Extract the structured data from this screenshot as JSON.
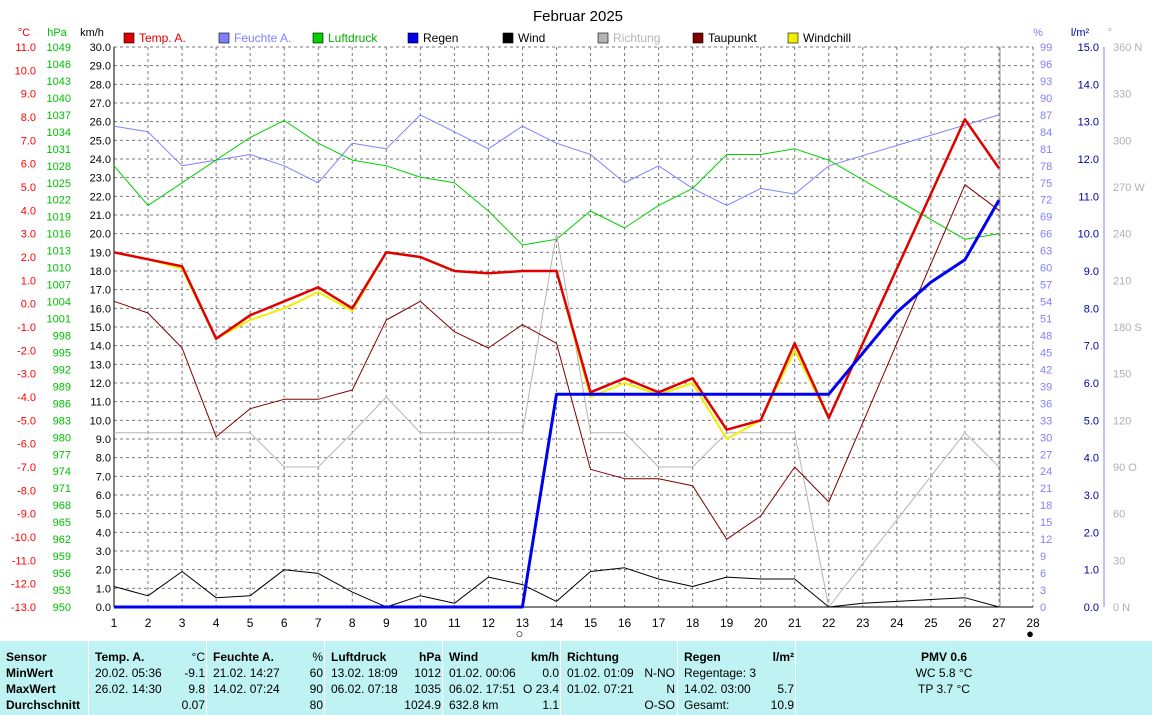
{
  "chart_data": {
    "type": "line",
    "title": "Februar 2025",
    "x": [
      1,
      2,
      3,
      4,
      5,
      6,
      7,
      8,
      9,
      10,
      11,
      12,
      13,
      14,
      15,
      16,
      17,
      18,
      19,
      20,
      21,
      22,
      23,
      24,
      25,
      26,
      27,
      28
    ],
    "xlim": [
      1,
      28
    ],
    "axes": {
      "temp": {
        "unit": "°C",
        "min": -13.0,
        "max": 11.0,
        "step": 1.0,
        "color": "#ff0000"
      },
      "pressure": {
        "unit": "hPa",
        "min": 950,
        "max": 1049,
        "step": 3,
        "color": "#00c000"
      },
      "wind": {
        "unit": "km/h",
        "min": 0.0,
        "max": 30.0,
        "step": 1.0,
        "color": "#000000"
      },
      "humidity": {
        "unit": "%",
        "min": 0,
        "max": 99,
        "step": 3,
        "color": "#8080ff"
      },
      "rain": {
        "unit": "l/m²",
        "min": 0.0,
        "max": 15.0,
        "step": 1.0,
        "color": "#0000ff"
      },
      "direction": {
        "unit": "°",
        "min": 0,
        "max": 360,
        "step": 30,
        "color": "#b0b0b0",
        "tick_labels": [
          "0 N",
          "30",
          "60",
          "90 O",
          "120",
          "150",
          "180 S",
          "210",
          "240",
          "270 W",
          "300",
          "330",
          "360 N"
        ]
      }
    },
    "series": [
      {
        "name": "Temp. A.",
        "axis": "temp",
        "color": "#e00000",
        "width": 2.5,
        "x": [
          1,
          2,
          3,
          4,
          5,
          6,
          7,
          8,
          9,
          10,
          11,
          12,
          13,
          14,
          15,
          16,
          17,
          18,
          19,
          20,
          21,
          22,
          26,
          27
        ],
        "values": [
          2.2,
          1.9,
          1.6,
          -1.5,
          -0.5,
          0.1,
          0.7,
          -0.2,
          2.2,
          2.0,
          1.4,
          1.3,
          1.4,
          1.4,
          -3.8,
          -3.2,
          -3.8,
          -3.2,
          -5.4,
          -5.0,
          -1.7,
          -4.9,
          7.9,
          5.8
        ]
      },
      {
        "name": "Feuchte A.",
        "axis": "humidity",
        "color": "#8080ff",
        "width": 1,
        "x": [
          1,
          2,
          3,
          4,
          5,
          6,
          7,
          8,
          9,
          10,
          11,
          12,
          13,
          14,
          15,
          16,
          17,
          18,
          19,
          20,
          21,
          22,
          27
        ],
        "values": [
          85,
          84,
          78,
          79,
          80,
          78,
          75,
          82,
          81,
          87,
          84,
          81,
          85,
          82,
          80,
          75,
          78,
          74,
          71,
          74,
          73,
          78,
          87
        ]
      },
      {
        "name": "Luftdruck",
        "axis": "pressure",
        "color": "#00d000",
        "width": 1,
        "x": [
          1,
          2,
          3,
          4,
          5,
          6,
          7,
          8,
          9,
          10,
          11,
          12,
          13,
          14,
          15,
          16,
          17,
          18,
          19,
          20,
          21,
          22,
          26,
          27
        ],
        "values": [
          1028,
          1021,
          1025,
          1029,
          1033,
          1036,
          1032,
          1029,
          1028,
          1026,
          1025,
          1020,
          1014,
          1015,
          1020,
          1017,
          1021,
          1024,
          1030,
          1030,
          1031,
          1029,
          1015,
          1016
        ]
      },
      {
        "name": "Regen",
        "axis": "rain",
        "color": "#0000ee",
        "width": 3,
        "x": [
          1,
          12,
          13,
          14,
          15,
          16,
          17,
          18,
          19,
          20,
          21,
          22,
          23,
          24,
          25,
          26,
          27
        ],
        "values": [
          0,
          0,
          0,
          5.7,
          5.7,
          5.7,
          5.7,
          5.7,
          5.7,
          5.7,
          5.7,
          5.7,
          6.8,
          7.9,
          8.7,
          9.3,
          10.9
        ]
      },
      {
        "name": "Wind",
        "axis": "wind",
        "color": "#000000",
        "width": 1,
        "x": [
          1,
          2,
          3,
          4,
          5,
          6,
          7,
          8,
          9,
          10,
          11,
          12,
          13,
          14,
          15,
          16,
          17,
          18,
          19,
          20,
          21,
          22,
          23,
          24,
          25,
          26,
          27
        ],
        "values": [
          1.1,
          0.6,
          1.9,
          0.5,
          0.6,
          2.0,
          1.8,
          0.8,
          0.0,
          0.6,
          0.2,
          1.6,
          1.2,
          0.3,
          1.9,
          2.1,
          1.5,
          1.1,
          1.6,
          1.5,
          1.5,
          0.0,
          0.2,
          0.3,
          0.4,
          0.5,
          0.0
        ]
      },
      {
        "name": "Richtung",
        "axis": "direction",
        "color": "#b4b4b4",
        "width": 1,
        "x": [
          1,
          2,
          3,
          4,
          5,
          6,
          7,
          8,
          9,
          10,
          11,
          12,
          13,
          14,
          15,
          16,
          17,
          18,
          19,
          20,
          21,
          22,
          26,
          27
        ],
        "values": [
          112,
          112,
          112,
          112,
          112,
          90,
          90,
          112,
          135,
          112,
          112,
          112,
          112,
          240,
          112,
          112,
          90,
          90,
          112,
          112,
          112,
          0,
          112,
          90
        ]
      },
      {
        "name": "Taupunkt",
        "axis": "temp",
        "color": "#800000",
        "width": 1,
        "x": [
          1,
          2,
          3,
          4,
          5,
          6,
          7,
          8,
          9,
          10,
          11,
          12,
          13,
          14,
          15,
          16,
          17,
          18,
          19,
          20,
          21,
          22,
          26,
          27
        ],
        "values": [
          0.1,
          -0.4,
          -1.9,
          -5.7,
          -4.5,
          -4.1,
          -4.1,
          -3.7,
          -0.7,
          0.1,
          -1.2,
          -1.9,
          -0.9,
          -1.7,
          -7.1,
          -7.5,
          -7.5,
          -7.8,
          -10.1,
          -9.1,
          -7.0,
          -8.5,
          5.1,
          4.0
        ]
      },
      {
        "name": "Windchill",
        "axis": "temp",
        "color": "#f0f000",
        "width": 2,
        "x": [
          1,
          2,
          3,
          4,
          5,
          6,
          7,
          8,
          9,
          10,
          11,
          12,
          13,
          14,
          15,
          16,
          17,
          18,
          19,
          20,
          21,
          22,
          26,
          27
        ],
        "values": [
          2.2,
          1.9,
          1.5,
          -1.5,
          -0.7,
          -0.2,
          0.5,
          -0.3,
          2.2,
          2.0,
          1.4,
          1.3,
          1.4,
          1.4,
          -4.0,
          -3.4,
          -3.9,
          -3.4,
          -5.8,
          -5.0,
          -2.0,
          -4.9,
          7.9,
          5.8
        ]
      }
    ],
    "x_markers": [
      {
        "x": 13,
        "label": "○"
      },
      {
        "x": 28,
        "label": "●"
      }
    ],
    "grid": true,
    "legend_position": "top"
  },
  "table": {
    "columns": [
      {
        "id": "sensor",
        "header": "Sensor",
        "unit": "",
        "rows": [
          "MinWert",
          "MaxWert",
          "Durchschnitt"
        ]
      },
      {
        "id": "temp",
        "header": "Temp. A.",
        "unit": "°C",
        "rows": [
          {
            "time": "20.02.  05:36",
            "value": "-9.1"
          },
          {
            "time": "26.02.  14:30",
            "value": "9.8"
          },
          {
            "time": "",
            "value": "0.07"
          }
        ]
      },
      {
        "id": "hum",
        "header": "Feuchte A.",
        "unit": "%",
        "rows": [
          {
            "time": "21.02.  14:27",
            "value": "60"
          },
          {
            "time": "14.02.  07:24",
            "value": "90"
          },
          {
            "time": "",
            "value": "80"
          }
        ]
      },
      {
        "id": "press",
        "header": "Luftdruck",
        "unit": "hPa",
        "rows": [
          {
            "time": "13.02.  18:09",
            "value": "1012"
          },
          {
            "time": "06.02.  07:18",
            "value": "1035"
          },
          {
            "time": "",
            "value": "1024.9"
          }
        ]
      },
      {
        "id": "wind",
        "header": "Wind",
        "unit": "km/h",
        "rows": [
          {
            "time": "01.02.  00:06",
            "value": "0.0"
          },
          {
            "time": "06.02.  17:51",
            "value": "O 23.4"
          },
          {
            "time": "632.8 km",
            "value": "1.1"
          }
        ]
      },
      {
        "id": "dir",
        "header": "Richtung",
        "unit": "",
        "rows": [
          {
            "time": "01.02.  01:09",
            "value": "N-NO"
          },
          {
            "time": "01.02.  07:21",
            "value": "N"
          },
          {
            "time": "",
            "value": "O-SO"
          }
        ]
      },
      {
        "id": "rain",
        "header": "Regen",
        "unit": "l/m²",
        "rows": [
          {
            "time": "Regentage: 3",
            "value": ""
          },
          {
            "time": "14.02.  03:00",
            "value": "5.7"
          },
          {
            "time": "Gesamt:",
            "value": "10.9"
          }
        ]
      }
    ],
    "pmv": {
      "header": "PMV 0.6",
      "wc": "WC 5.8 °C",
      "tp": "TP 3.7 °C"
    }
  }
}
